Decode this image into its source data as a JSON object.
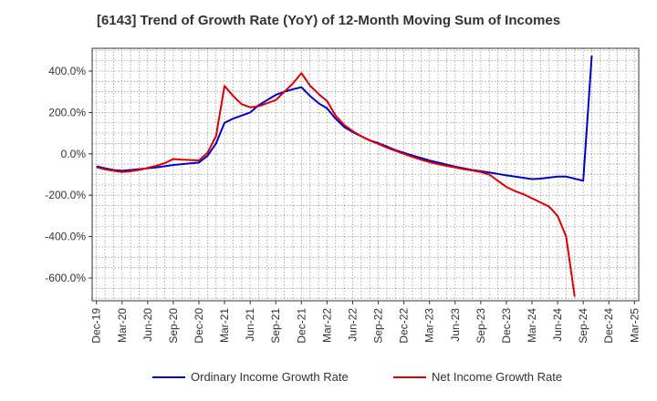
{
  "chart_data": {
    "type": "line",
    "title": "[6143]  Trend of Growth Rate (YoY) of 12-Month Moving Sum of Incomes",
    "xlabel": "",
    "ylabel": "",
    "grid": true,
    "legend_position": "bottom",
    "ylim": [
      -710,
      510
    ],
    "y_ticks": [
      400,
      200,
      0,
      -200,
      -400,
      -600
    ],
    "y_tick_labels": [
      "400.0%",
      "200.0%",
      "0.0%",
      "-200.0%",
      "-400.0%",
      "-600.0%"
    ],
    "x_tick_labels": [
      "Dec-19",
      "Mar-20",
      "Jun-20",
      "Sep-20",
      "Dec-20",
      "Mar-21",
      "Jun-21",
      "Sep-21",
      "Dec-21",
      "Mar-22",
      "Jun-22",
      "Sep-22",
      "Dec-22",
      "Mar-23",
      "Jun-23",
      "Sep-23",
      "Dec-23",
      "Mar-24",
      "Jun-24",
      "Sep-24",
      "Dec-24",
      "Mar-25"
    ],
    "x_months": [
      "2019-12",
      "2020-01",
      "2020-02",
      "2020-03",
      "2020-04",
      "2020-05",
      "2020-06",
      "2020-07",
      "2020-08",
      "2020-09",
      "2020-10",
      "2020-11",
      "2020-12",
      "2021-01",
      "2021-02",
      "2021-03",
      "2021-04",
      "2021-05",
      "2021-06",
      "2021-07",
      "2021-08",
      "2021-09",
      "2021-10",
      "2021-11",
      "2021-12",
      "2022-01",
      "2022-02",
      "2022-03",
      "2022-04",
      "2022-05",
      "2022-06",
      "2022-07",
      "2022-08",
      "2022-09",
      "2022-10",
      "2022-11",
      "2022-12",
      "2023-01",
      "2023-02",
      "2023-03",
      "2023-04",
      "2023-05",
      "2023-06",
      "2023-07",
      "2023-08",
      "2023-09",
      "2023-10",
      "2023-11",
      "2023-12",
      "2024-01",
      "2024-02",
      "2024-03",
      "2024-04",
      "2024-05",
      "2024-06",
      "2024-07",
      "2024-08",
      "2024-09",
      "2024-10",
      "2024-11",
      "2024-12",
      "2025-01",
      "2025-02",
      "2025-03"
    ],
    "series": [
      {
        "name": "Ordinary Income Growth Rate",
        "color": "#0000cc",
        "values": [
          -60,
          -70,
          -78,
          -82,
          -78,
          -74,
          -70,
          -66,
          -60,
          -54,
          -50,
          -46,
          -42,
          -10,
          50,
          150,
          170,
          185,
          200,
          235,
          260,
          285,
          300,
          312,
          322,
          280,
          245,
          220,
          170,
          130,
          105,
          85,
          65,
          52,
          35,
          18,
          5,
          -8,
          -20,
          -32,
          -42,
          -52,
          -62,
          -70,
          -78,
          -84,
          -90,
          -97,
          -104,
          -110,
          -116,
          -122,
          -120,
          -115,
          -110,
          -110,
          -120,
          -130,
          475,
          null,
          null,
          null,
          null,
          null
        ]
      },
      {
        "name": "Net Income Growth Rate",
        "color": "#dd0000",
        "values": [
          -65,
          -75,
          -82,
          -88,
          -84,
          -78,
          -68,
          -58,
          -45,
          -25,
          -28,
          -30,
          -32,
          5,
          85,
          328,
          280,
          240,
          225,
          230,
          245,
          260,
          300,
          340,
          390,
          330,
          290,
          255,
          185,
          140,
          110,
          85,
          65,
          48,
          30,
          15,
          0,
          -15,
          -28,
          -40,
          -50,
          -58,
          -66,
          -74,
          -80,
          -88,
          -100,
          -130,
          -160,
          -180,
          -195,
          -215,
          -235,
          -255,
          -300,
          -400,
          -690,
          null,
          null,
          null,
          null,
          null,
          null,
          null
        ]
      }
    ]
  }
}
